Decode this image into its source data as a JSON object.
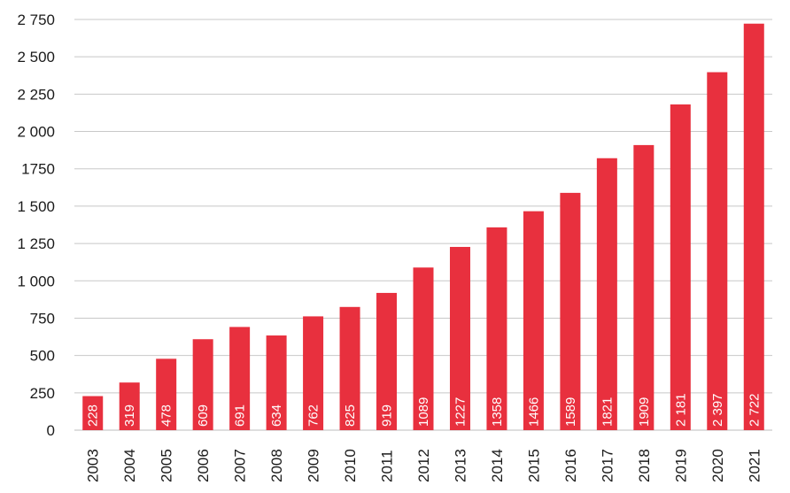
{
  "chart_data": {
    "type": "bar",
    "categories": [
      "2003",
      "2004",
      "2005",
      "2006",
      "2007",
      "2008",
      "2009",
      "2010",
      "2011",
      "2012",
      "2013",
      "2014",
      "2015",
      "2016",
      "2017",
      "2018",
      "2019",
      "2020",
      "2021"
    ],
    "values": [
      228,
      319,
      478,
      609,
      691,
      634,
      762,
      825,
      919,
      1089,
      1227,
      1358,
      1466,
      1589,
      1821,
      1909,
      2181,
      2397,
      2722
    ],
    "data_labels": [
      "228",
      "319",
      "478",
      "609",
      "691",
      "634",
      "762",
      "825",
      "919",
      "1089",
      "1227",
      "1358",
      "1466",
      "1589",
      "1821",
      "1909",
      "2 181",
      "2 397",
      "2 722"
    ],
    "y_ticks": [
      0,
      250,
      500,
      750,
      1000,
      1250,
      1500,
      1750,
      2000,
      2250,
      2500,
      2750
    ],
    "y_tick_labels": [
      "0",
      "250",
      "500",
      "750",
      "1 000",
      "1 250",
      "1 500",
      "1750",
      "2 000",
      "2 250",
      "2 500",
      "2 750"
    ],
    "ylim": [
      0,
      2750
    ],
    "title": "",
    "xlabel": "",
    "ylabel": "",
    "grid": true,
    "bar_color": "#e8303e"
  }
}
